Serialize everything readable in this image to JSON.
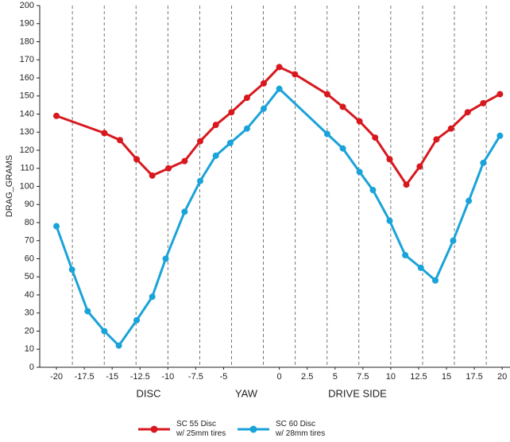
{
  "chart_data": {
    "type": "line",
    "y_label": "DRAG_GRAMS",
    "annotations": [
      "DISC",
      "YAW",
      "DRIVE SIDE"
    ],
    "xlim": [
      -21.5,
      20.7
    ],
    "ylim": [
      0,
      200
    ],
    "xticks": [
      -20,
      -17.5,
      -15,
      -12.5,
      -10,
      -7.5,
      -5,
      0,
      2.5,
      5,
      7.5,
      10,
      12.5,
      15,
      17.5,
      20
    ],
    "yticks": [
      0,
      10,
      20,
      30,
      40,
      50,
      60,
      70,
      80,
      90,
      100,
      110,
      120,
      130,
      140,
      150,
      160,
      170,
      180,
      190,
      200
    ],
    "vgrid": [
      -18.57,
      -15.71,
      -12.86,
      -10,
      -7.14,
      -4.29,
      -1.43,
      1.43,
      4.29,
      7.14,
      10,
      12.86,
      15.71,
      18.57
    ],
    "series": [
      {
        "name": "SC 55 Disc\nw/ 25mm tires",
        "color": "#d7191f",
        "x": [
          -20,
          -15.7,
          -14.3,
          -12.8,
          -11.4,
          -9.95,
          -8.5,
          -7.1,
          -5.7,
          -4.3,
          -2.9,
          -1.4,
          0,
          1.4,
          4.3,
          5.7,
          7.2,
          8.6,
          9.9,
          11.4,
          12.6,
          14.1,
          15.4,
          16.9,
          18.3,
          19.8
        ],
        "values": [
          139,
          129.5,
          125.6,
          115,
          106,
          110,
          114,
          125,
          134,
          141,
          149,
          157,
          166,
          162,
          151,
          144,
          136,
          127,
          115,
          101,
          111,
          126,
          132,
          141,
          146,
          151
        ]
      },
      {
        "name": "SC 60 Disc\nw/ 28mm tires",
        "color": "#1aa3d9",
        "x": [
          -20,
          -18.6,
          -17.2,
          -15.7,
          -14.4,
          -12.8,
          -11.4,
          -10.2,
          -8.5,
          -7.1,
          -5.7,
          -4.4,
          -2.9,
          -1.4,
          0,
          4.3,
          5.7,
          7.2,
          8.4,
          9.9,
          11.3,
          12.7,
          14,
          15.6,
          17,
          18.3,
          19.8
        ],
        "values": [
          78,
          54,
          31,
          20,
          12,
          26,
          39,
          60,
          86,
          103,
          117,
          124,
          132,
          143,
          154,
          129,
          121,
          108,
          98,
          81,
          62,
          55,
          48,
          70,
          92,
          113,
          128
        ]
      }
    ]
  }
}
